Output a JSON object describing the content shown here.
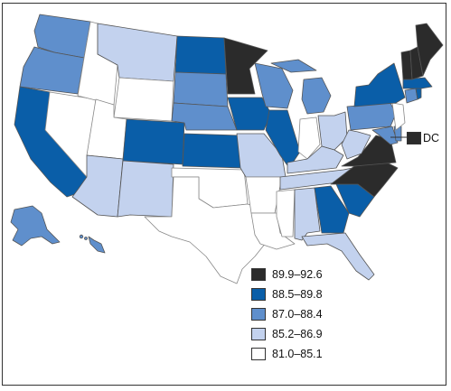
{
  "colors": {
    "c1": "#2b2b2b",
    "c2": "#0a5ea8",
    "c3": "#5f8fcc",
    "c4": "#c3d2ee",
    "c5": "#ffffff"
  },
  "legend": [
    {
      "label": "89.9–92.6",
      "class": "c1"
    },
    {
      "label": "88.5–89.8",
      "class": "c2"
    },
    {
      "label": "87.0–88.4",
      "class": "c3"
    },
    {
      "label": "85.2–86.9",
      "class": "c4"
    },
    {
      "label": "81.0–85.1",
      "class": "c5"
    }
  ],
  "dc": {
    "label": "DC",
    "class": "c1"
  },
  "states": {
    "WA": "c3",
    "OR": "c3",
    "CA": "c2",
    "NV": "c5",
    "ID": "c5",
    "MT": "c4",
    "WY": "c5",
    "UT": "c5",
    "AZ": "c4",
    "CO": "c2",
    "NM": "c4",
    "ND": "c2",
    "SD": "c3",
    "NE": "c3",
    "KS": "c2",
    "OK": "c5",
    "TX": "c5",
    "MN": "c1",
    "IA": "c2",
    "MO": "c4",
    "AR": "c5",
    "LA": "c5",
    "WI": "c3",
    "IL": "c2",
    "MI": "c3",
    "IN": "c5",
    "OH": "c4",
    "KY": "c4",
    "TN": "c4",
    "MS": "c5",
    "AL": "c4",
    "GA": "c2",
    "FL": "c4",
    "SC": "c2",
    "NC": "c1",
    "VA": "c1",
    "WV": "c4",
    "MD": "c3",
    "DE": "c3",
    "PA": "c3",
    "NJ": "c5",
    "NY": "c2",
    "CT": "c3",
    "RI": "c2",
    "MA": "c2",
    "VT": "c1",
    "NH": "c1",
    "ME": "c1",
    "AK": "c3",
    "HI": "c3"
  }
}
